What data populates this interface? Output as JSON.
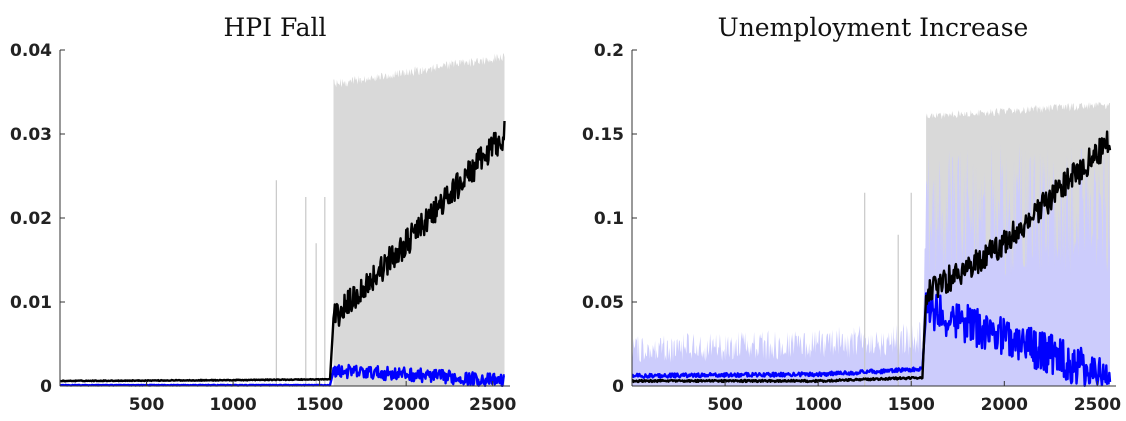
{
  "chart_data": [
    {
      "type": "line",
      "title": "HPI Fall",
      "xlabel": "",
      "ylabel": "",
      "xlim": [
        0,
        2600
      ],
      "ylim": [
        0,
        0.04
      ],
      "xticks": [
        500,
        1000,
        1500,
        2000,
        2500
      ],
      "yticks": [
        0,
        0.01,
        0.02,
        0.03,
        0.04
      ],
      "ytick_labels": [
        "0",
        "0.01",
        "0.02",
        "0.03",
        "0.04"
      ],
      "grid": false,
      "colors": {
        "band_upper": "#d9d9d9",
        "band_lower": "#ccccfc",
        "black_series": "#000000",
        "blue_series": "#0000ff"
      },
      "series": [
        {
          "x": [
            0,
            1000,
            1560,
            1580,
            2000,
            2570
          ],
          "values": [
            0.0006,
            0.0007,
            0.0008,
            0.008,
            0.017,
            0.03
          ]
        },
        {
          "x": [
            0,
            1000,
            1560,
            1580,
            2000,
            2570
          ],
          "values": [
            0.0001,
            0.0001,
            0.0001,
            0.0018,
            0.0014,
            0.0006
          ]
        }
      ],
      "bands": [
        {
          "x": [
            1580,
            2570
          ],
          "lower": [
            0.0,
            0.0
          ],
          "upper": [
            0.0365,
            0.0398
          ]
        },
        {
          "x": [
            1580,
            2570
          ],
          "lower": [
            0.0,
            0.0
          ],
          "upper": [
            0.0,
            0.0
          ]
        }
      ],
      "spikes": {
        "x": [
          1250,
          1420,
          1480,
          1530
        ],
        "values": [
          0.0245,
          0.0225,
          0.017,
          0.0225
        ]
      }
    },
    {
      "type": "line",
      "title": "Unemployment Increase",
      "xlabel": "",
      "ylabel": "",
      "xlim": [
        0,
        2600
      ],
      "ylim": [
        0,
        0.2
      ],
      "xticks": [
        500,
        1000,
        1500,
        2000,
        2500
      ],
      "yticks": [
        0,
        0.05,
        0.1,
        0.15,
        0.2
      ],
      "ytick_labels": [
        "0",
        "0.05",
        "0.1",
        "0.15",
        "0.2"
      ],
      "grid": false,
      "colors": {
        "band_upper": "#d9d9d9",
        "band_lower": "#ccccfc",
        "black_series": "#000000",
        "blue_series": "#0000ff"
      },
      "series": [
        {
          "x": [
            0,
            1000,
            1560,
            1580,
            2000,
            2570
          ],
          "values": [
            0.003,
            0.003,
            0.005,
            0.055,
            0.085,
            0.146
          ]
        },
        {
          "x": [
            0,
            1000,
            1560,
            1580,
            2000,
            2570
          ],
          "values": [
            0.006,
            0.007,
            0.01,
            0.045,
            0.03,
            0.004
          ]
        }
      ],
      "bands": [
        {
          "x": [
            1580,
            2570
          ],
          "lower": [
            0.0,
            0.0
          ],
          "upper": [
            0.163,
            0.17
          ]
        },
        {
          "x": [
            0,
            1000,
            1560,
            1580,
            2000,
            2570
          ],
          "lower": [
            0.0,
            0.0,
            0.0,
            0.0,
            0.0,
            0.0
          ],
          "upper": [
            0.03,
            0.035,
            0.04,
            0.14,
            0.145,
            0.145
          ]
        }
      ],
      "spikes": {
        "x": [
          1250,
          1430,
          1500
        ],
        "values": [
          0.115,
          0.09,
          0.115
        ]
      }
    }
  ]
}
